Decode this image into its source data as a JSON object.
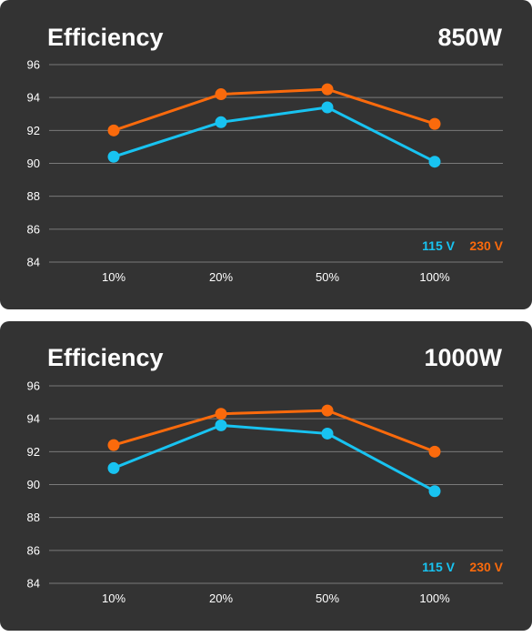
{
  "colors": {
    "background": "#333333",
    "grid": "#7a7a7a",
    "text": "#ffffff",
    "series_115": "#18c3f1",
    "series_230": "#fa6a0c"
  },
  "chart_data": [
    {
      "type": "line",
      "title": "Efficiency",
      "subtitle": "850W",
      "categories": [
        "10%",
        "20%",
        "50%",
        "100%"
      ],
      "ylim": [
        84,
        96
      ],
      "yticks": [
        84,
        86,
        88,
        90,
        92,
        94,
        96
      ],
      "grid": true,
      "legend_position": "bottom-right",
      "series": [
        {
          "name": "115 V",
          "color": "#18c3f1",
          "values": [
            90.4,
            92.5,
            93.4,
            90.1
          ]
        },
        {
          "name": "230 V",
          "color": "#fa6a0c",
          "values": [
            92.0,
            94.2,
            94.5,
            92.4
          ]
        }
      ]
    },
    {
      "type": "line",
      "title": "Efficiency",
      "subtitle": "1000W",
      "categories": [
        "10%",
        "20%",
        "50%",
        "100%"
      ],
      "ylim": [
        84,
        96
      ],
      "yticks": [
        84,
        86,
        88,
        90,
        92,
        94,
        96
      ],
      "grid": true,
      "legend_position": "bottom-right",
      "series": [
        {
          "name": "115 V",
          "color": "#18c3f1",
          "values": [
            91.0,
            93.6,
            93.1,
            89.6
          ]
        },
        {
          "name": "230 V",
          "color": "#fa6a0c",
          "values": [
            92.4,
            94.3,
            94.5,
            92.0
          ]
        }
      ]
    }
  ]
}
